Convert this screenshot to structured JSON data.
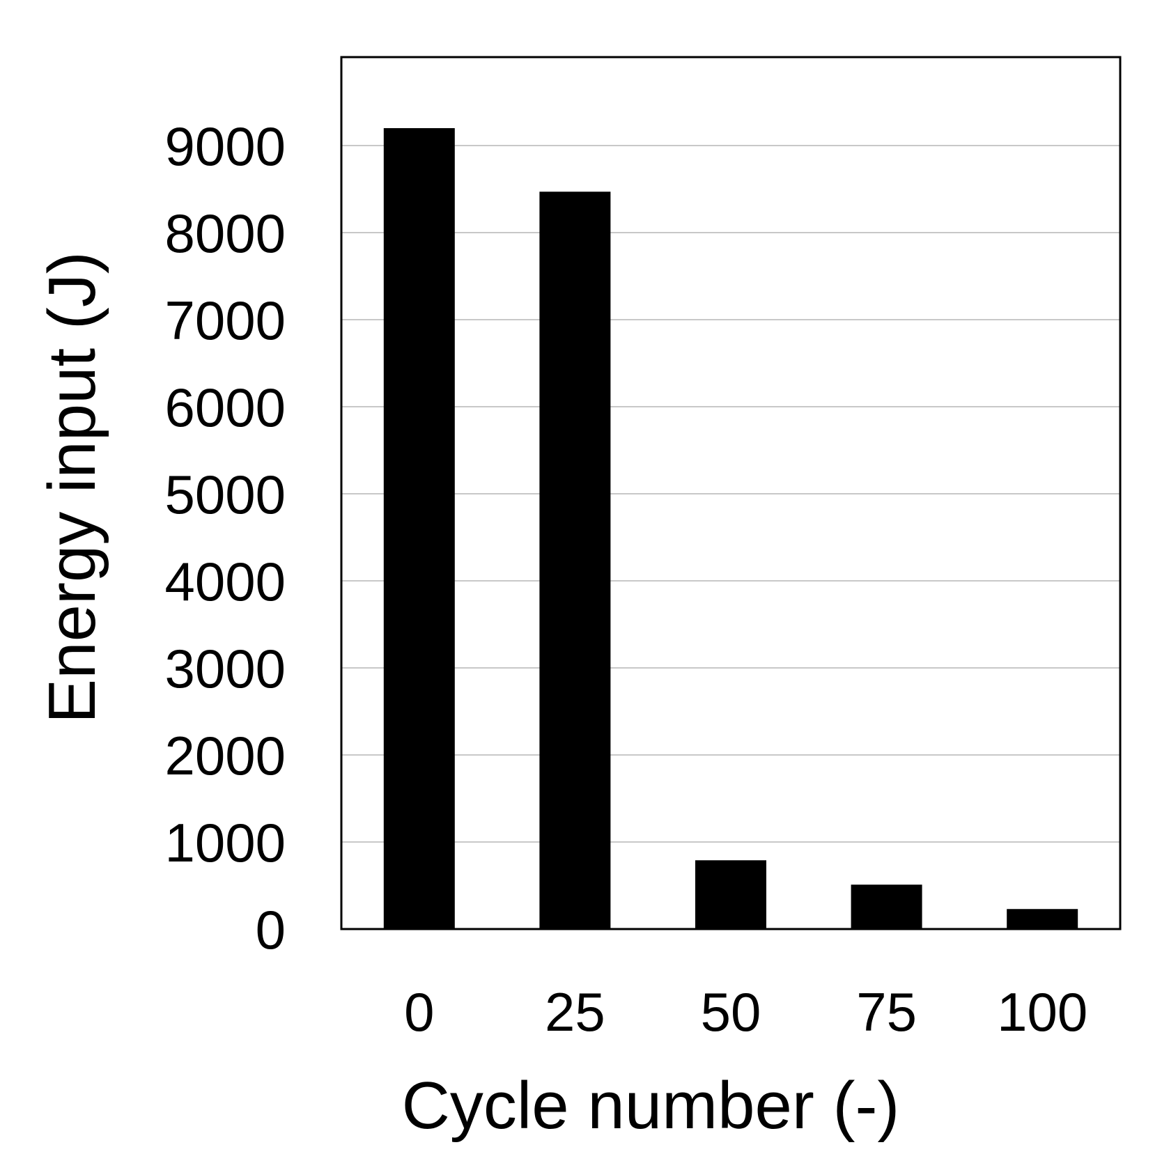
{
  "chart_data": {
    "type": "bar",
    "title": "",
    "xlabel": "Cycle number (-)",
    "ylabel": "Energy input (J)",
    "categories": [
      "0",
      "25",
      "50",
      "75",
      "100"
    ],
    "series": [
      {
        "values": [
          9200,
          8470,
          790,
          510,
          230
        ]
      }
    ],
    "ylim": [
      0,
      10000
    ],
    "yticks": [
      0,
      1000,
      2000,
      3000,
      4000,
      5000,
      6000,
      7000,
      8000,
      9000
    ],
    "grid": true,
    "legend": "none",
    "colors": {
      "bar": "#000000",
      "grid": "#c8c8c8",
      "frame": "#000000"
    }
  }
}
